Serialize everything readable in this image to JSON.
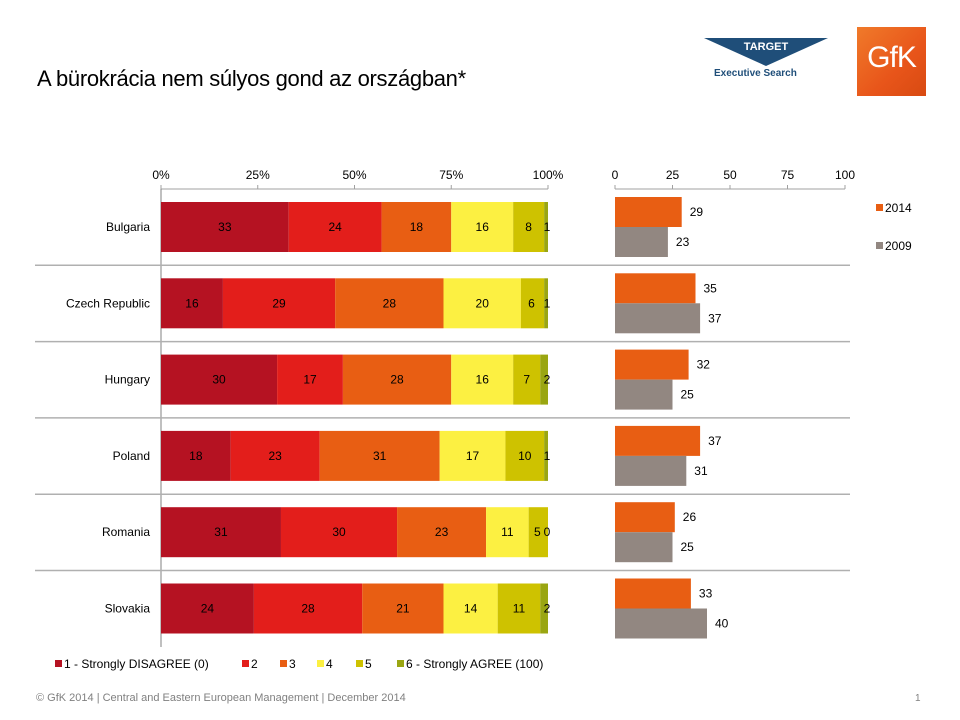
{
  "header": {
    "title": "A bürokrácia nem súlyos gond az országban*",
    "logo_target_top": "TARGET",
    "logo_target_bottom": "Executive Search",
    "logo_gfk": "GfK"
  },
  "footer": {
    "text": "© GfK 2014 | Central and Eastern European Management | December 2014",
    "page_number": "1"
  },
  "chart_data": [
    {
      "type": "bar",
      "orientation": "horizontal",
      "stacked": "percent",
      "title": "",
      "xlabel": "",
      "ylabel": "",
      "xlim": [
        0,
        100
      ],
      "x_ticks": [
        "0%",
        "25%",
        "50%",
        "75%",
        "100%"
      ],
      "categories": [
        "Bulgaria",
        "Czech Republic",
        "Hungary",
        "Poland",
        "Romania",
        "Slovakia"
      ],
      "series": [
        {
          "name": "1 - Strongly DISAGREE (0)",
          "color": "#b51222",
          "values": [
            33,
            16,
            30,
            18,
            31,
            24
          ]
        },
        {
          "name": "2",
          "color": "#e31e1b",
          "values": [
            24,
            29,
            17,
            23,
            30,
            28
          ]
        },
        {
          "name": "3",
          "color": "#e85e13",
          "values": [
            18,
            28,
            28,
            31,
            23,
            21
          ]
        },
        {
          "name": "4",
          "color": "#fcf042",
          "values": [
            16,
            20,
            16,
            17,
            11,
            14
          ]
        },
        {
          "name": "5",
          "color": "#cec200",
          "values": [
            8,
            6,
            7,
            10,
            5,
            11
          ]
        },
        {
          "name": "6 - Strongly AGREE (100)",
          "color": "#9aa612",
          "values": [
            1,
            1,
            2,
            1,
            0,
            2
          ]
        }
      ],
      "legend": "bottom",
      "grid": false
    },
    {
      "type": "bar",
      "orientation": "horizontal",
      "title": "",
      "xlabel": "",
      "ylabel": "",
      "xlim": [
        0,
        100
      ],
      "x_ticks": [
        "0",
        "25",
        "50",
        "75",
        "100"
      ],
      "categories": [
        "Bulgaria",
        "Czech Republic",
        "Hungary",
        "Poland",
        "Romania",
        "Slovakia"
      ],
      "series": [
        {
          "name": "2014",
          "color": "#e85e13",
          "values": [
            29,
            35,
            32,
            37,
            26,
            33
          ]
        },
        {
          "name": "2009",
          "color": "#928781",
          "values": [
            23,
            37,
            25,
            31,
            25,
            40
          ]
        }
      ],
      "legend": "right",
      "grid": false
    }
  ]
}
